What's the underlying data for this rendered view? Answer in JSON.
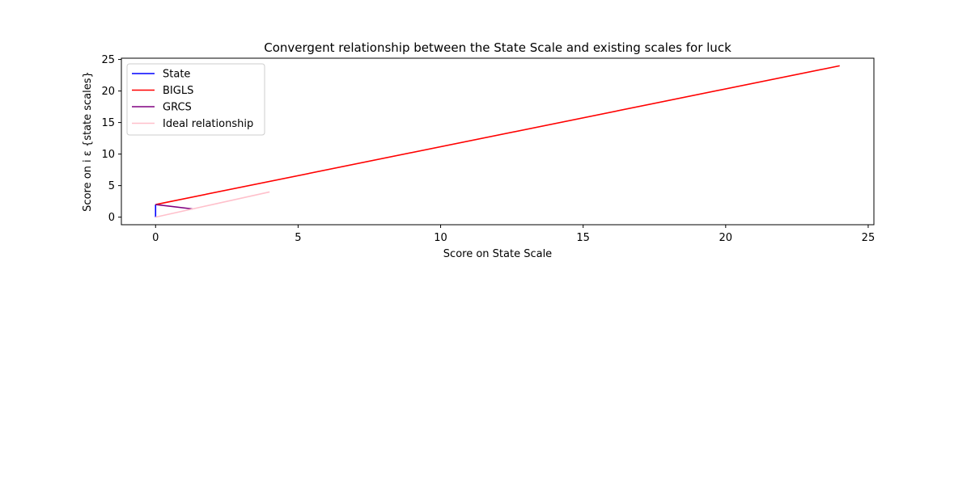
{
  "chart_data": {
    "type": "line",
    "title": "Convergent relationship between the State Scale and existing scales for luck",
    "xlabel": "Score on State Scale",
    "ylabel": "Score on i ε {state scales}",
    "xlim": [
      -1.2,
      25.2
    ],
    "ylim": [
      -1.2,
      25.2
    ],
    "xticks": [
      0,
      5,
      10,
      15,
      20,
      25
    ],
    "yticks": [
      0,
      5,
      10,
      15,
      20,
      25
    ],
    "grid": false,
    "legend_position": "upper left",
    "series": [
      {
        "name": "State",
        "color": "#0000ff",
        "x": [
          0,
          0
        ],
        "y": [
          0,
          2
        ]
      },
      {
        "name": "BIGLS",
        "color": "#ff0000",
        "x": [
          0,
          24
        ],
        "y": [
          2,
          24
        ]
      },
      {
        "name": "GRCS",
        "color": "#800080",
        "x": [
          0,
          1.3
        ],
        "y": [
          2,
          1.3
        ]
      },
      {
        "name": "Ideal relationship",
        "color": "#ffc0cb",
        "x": [
          0,
          4
        ],
        "y": [
          0,
          4
        ]
      }
    ]
  }
}
